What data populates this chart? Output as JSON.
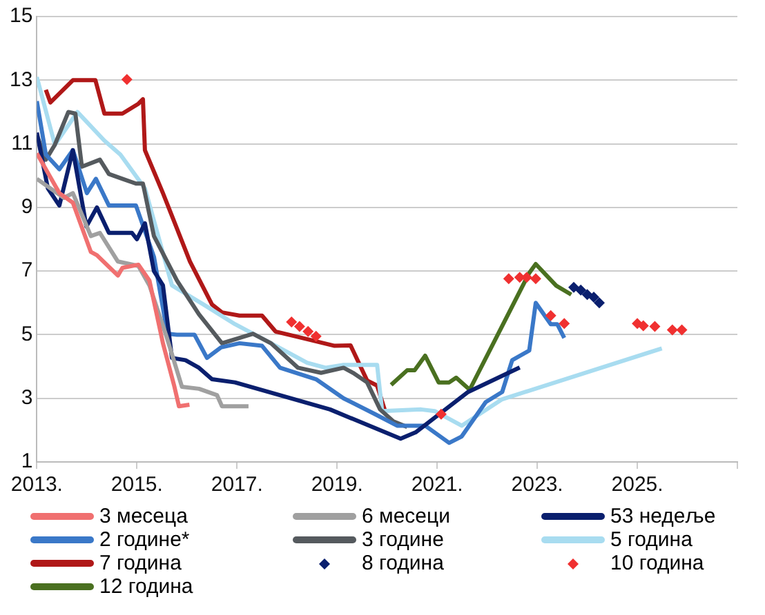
{
  "chart_data": {
    "type": "line",
    "xlim": [
      2013,
      2027
    ],
    "ylim": [
      1,
      15
    ],
    "xticks": [
      {
        "value": 2013,
        "label": "2013."
      },
      {
        "value": 2015,
        "label": "2015."
      },
      {
        "value": 2017,
        "label": "2017."
      },
      {
        "value": 2019,
        "label": "2019."
      },
      {
        "value": 2021,
        "label": "2021."
      },
      {
        "value": 2023,
        "label": "2023."
      },
      {
        "value": 2025,
        "label": "2025."
      },
      {
        "value": 2027,
        "label": null
      }
    ],
    "yticks": [
      1,
      3,
      5,
      7,
      9,
      11,
      13,
      15
    ],
    "grid": "y",
    "legend": "bottom",
    "series": [
      {
        "name": "3 месеца",
        "color": "#f07070",
        "x": [
          2013,
          2013.45,
          2013.72,
          2014.08,
          2014.2,
          2014.62,
          2014.71,
          2015.03,
          2015.25,
          2015.52,
          2015.75,
          2015.84,
          2016.05
        ],
        "values": [
          10.7,
          9.45,
          9.15,
          7.6,
          7.5,
          6.86,
          7.1,
          7.2,
          6.7,
          4.73,
          3.36,
          2.75,
          2.8
        ]
      },
      {
        "name": "6 месеци",
        "color": "#a0a0a0",
        "x": [
          2013,
          2013.54,
          2013.72,
          2014.08,
          2014.26,
          2014.62,
          2015.03,
          2015.25,
          2015.6,
          2015.9,
          2016.24,
          2016.6,
          2016.7,
          2017.23
        ],
        "values": [
          9.9,
          9.3,
          9.45,
          8.1,
          8.2,
          7.3,
          7.16,
          6.55,
          4.9,
          3.36,
          3.3,
          3.1,
          2.75,
          2.75
        ]
      },
      {
        "name": "53 недеље",
        "color": "#0a1f6e",
        "x": [
          2013,
          2013.22,
          2013.45,
          2013.72,
          2013.99,
          2014.2,
          2014.44,
          2014.9,
          2015.0,
          2015.16,
          2015.34,
          2015.52,
          2015.7,
          2015.97,
          2016.24,
          2016.5,
          2016.96,
          2018.86,
          2020.27,
          2020.57,
          2021.62,
          2022.65
        ],
        "values": [
          11.35,
          9.6,
          9.06,
          10.8,
          8.4,
          9.0,
          8.2,
          8.2,
          8.0,
          8.5,
          7.0,
          6.55,
          4.27,
          4.2,
          3.96,
          3.6,
          3.5,
          2.65,
          1.73,
          1.93,
          3.2,
          3.97
        ]
      },
      {
        "name": "2 године*",
        "color": "#3a78c8",
        "x": [
          2013,
          2013.18,
          2013.45,
          2013.72,
          2014.0,
          2014.18,
          2014.44,
          2014.98,
          2015.34,
          2015.61,
          2015.8,
          2016.15,
          2016.4,
          2016.68,
          2017.05,
          2017.5,
          2017.86,
          2018.58,
          2019.13,
          2019.76,
          2020.2,
          2020.76,
          2021.24,
          2021.49,
          2021.97,
          2022.3,
          2022.5,
          2022.84,
          2022.97,
          2023.27,
          2023.4,
          2023.54
        ],
        "values": [
          12.34,
          10.66,
          10.2,
          10.8,
          9.45,
          9.9,
          9.06,
          9.06,
          7.45,
          5.03,
          5.0,
          5.0,
          4.27,
          4.6,
          4.73,
          4.65,
          3.96,
          3.6,
          3.0,
          2.5,
          2.14,
          2.14,
          1.6,
          1.8,
          2.88,
          3.2,
          4.2,
          4.5,
          6.0,
          5.33,
          5.33,
          4.9
        ]
      },
      {
        "name": "3 године",
        "color": "#555a5e",
        "x": [
          2013,
          2013.18,
          2013.36,
          2013.63,
          2013.77,
          2013.9,
          2014.26,
          2014.44,
          2014.71,
          2014.98,
          2015.12,
          2015.34,
          2015.8,
          2016.24,
          2016.7,
          2017.32,
          2017.68,
          2018.22,
          2018.68,
          2019.13,
          2019.32,
          2019.6,
          2019.86,
          2020.13,
          2020.4
        ],
        "values": [
          11.27,
          10.5,
          10.97,
          12.0,
          11.95,
          10.28,
          10.5,
          10.05,
          9.9,
          9.75,
          9.75,
          8.1,
          6.7,
          5.64,
          4.73,
          5.03,
          4.73,
          3.96,
          3.8,
          3.96,
          3.8,
          3.5,
          2.65,
          2.27,
          2.1
        ]
      },
      {
        "name": "5 година",
        "color": "#a8dcf0",
        "x": [
          2013,
          2013.36,
          2013.81,
          2014.35,
          2014.67,
          2015.16,
          2015.7,
          2016.33,
          2016.96,
          2017.68,
          2018.4,
          2018.77,
          2019.13,
          2019.8,
          2019.9,
          2020.68,
          2020.95,
          2021.49,
          2022.3,
          2025.49
        ],
        "values": [
          13.1,
          10.97,
          12.0,
          11.1,
          10.66,
          9.6,
          6.55,
          5.95,
          5.33,
          4.73,
          4.12,
          3.96,
          4.05,
          4.05,
          2.6,
          2.65,
          2.6,
          2.14,
          2.97,
          4.57
        ]
      },
      {
        "name": "7 година",
        "color": "#b01818",
        "x": [
          2013.18,
          2013.27,
          2013.72,
          2014.17,
          2014.35,
          2014.71,
          2015.03,
          2015.12,
          2015.16,
          2015.52,
          2016.06,
          2016.5,
          2016.7,
          2017.05,
          2017.5,
          2017.77,
          2018.3,
          2018.95,
          2019.27,
          2019.6,
          2019.8,
          2019.95
        ],
        "values": [
          12.7,
          12.3,
          13.0,
          13.0,
          11.95,
          11.95,
          12.26,
          12.4,
          10.8,
          9.45,
          7.3,
          5.95,
          5.7,
          5.6,
          5.6,
          5.1,
          4.9,
          4.65,
          4.66,
          3.56,
          3.4,
          2.65
        ]
      },
      {
        "name": "8 година",
        "type": "scatter",
        "marker": "diamond",
        "color": "#0a1f6e",
        "x": [
          2023.73,
          2023.87,
          2024.0,
          2024.13,
          2024.24
        ],
        "values": [
          6.49,
          6.4,
          6.26,
          6.18,
          6.0
        ]
      },
      {
        "name": "10 година",
        "type": "scatter",
        "marker": "diamond",
        "color": "#f03030",
        "x": [
          2014.8,
          2018.09,
          2018.25,
          2018.42,
          2018.58,
          2021.08,
          2022.43,
          2022.65,
          2022.79,
          2022.97,
          2023.27,
          2023.54,
          2025.0,
          2025.12,
          2025.35,
          2025.7,
          2025.89
        ],
        "values": [
          13.02,
          5.4,
          5.26,
          5.1,
          4.95,
          2.5,
          6.76,
          6.8,
          6.8,
          6.76,
          5.6,
          5.35,
          5.35,
          5.28,
          5.26,
          5.15,
          5.15
        ]
      },
      {
        "name": "12 година",
        "color": "#4a7020",
        "x": [
          2020.08,
          2020.4,
          2020.55,
          2020.76,
          2021.03,
          2021.24,
          2021.38,
          2021.65,
          2022.84,
          2022.97,
          2023.38,
          2023.68
        ],
        "values": [
          3.42,
          3.88,
          3.88,
          4.34,
          3.5,
          3.5,
          3.65,
          3.27,
          6.94,
          7.22,
          6.54,
          6.26
        ]
      }
    ]
  }
}
